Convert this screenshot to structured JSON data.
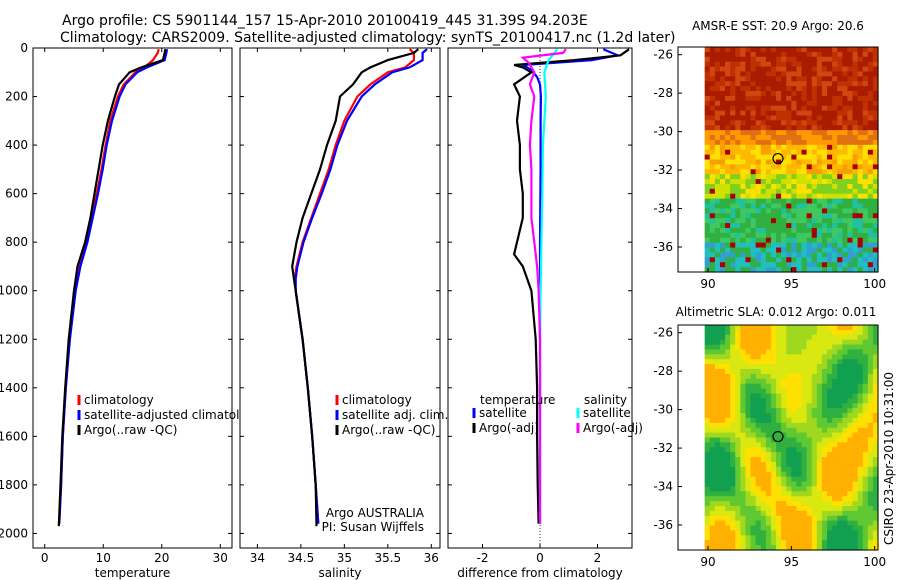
{
  "header": {
    "line1": "Argo profile: CS 5901144_157 15-Apr-2010 20100419_445 31.39S 94.203E",
    "line2": "Climatology: CARS2009. Satellite-adjusted climatology: synTS_20100417.nc (1.2d later)"
  },
  "side_label": "CSIRO 23-Apr-2010 10:31:00",
  "colors": {
    "red": "#ff0000",
    "blue": "#0000ff",
    "black": "#000000",
    "cyan": "#00ffff",
    "magenta": "#ff00ff"
  },
  "chart_data": [
    {
      "id": "temperature",
      "type": "line",
      "xlabel": "temperature",
      "xlim": [
        -2,
        32
      ],
      "xticks": [
        0,
        10,
        20,
        30
      ],
      "ylim": [
        2060,
        0
      ],
      "yticks": [
        0,
        200,
        400,
        600,
        800,
        1000,
        1200,
        1400,
        1600,
        1800,
        2000
      ],
      "legend": {
        "placement": "lower-right",
        "entries": [
          "climatology",
          "satellite-adjusted climatology",
          "Argo(..raw -QC)"
        ]
      },
      "series": [
        {
          "name": "climatology",
          "color": "red",
          "depth": [
            5,
            20,
            50,
            80,
            100,
            150,
            200,
            300,
            400,
            500,
            600,
            700,
            800,
            900,
            1000,
            1200,
            1400,
            1600,
            1800,
            1950
          ],
          "values": [
            19.5,
            19.3,
            18.5,
            17,
            15.5,
            13.5,
            12.5,
            11.2,
            10.4,
            9.7,
            8.9,
            8.0,
            7.1,
            6.0,
            5.2,
            4.2,
            3.6,
            3.1,
            2.8,
            2.5
          ]
        },
        {
          "name": "satellite-adjusted climatology",
          "color": "blue",
          "depth": [
            5,
            20,
            50,
            80,
            100,
            150,
            200,
            300,
            400,
            500,
            600,
            700,
            800,
            900,
            1000,
            1200,
            1400,
            1600,
            1800,
            1960
          ],
          "values": [
            20.9,
            20.8,
            20.5,
            17.5,
            15.8,
            13.8,
            12.8,
            11.5,
            10.6,
            9.9,
            9.1,
            8.2,
            7.3,
            6.1,
            5.3,
            4.3,
            3.6,
            3.1,
            2.8,
            2.5
          ]
        },
        {
          "name": "Argo(..raw -QC)",
          "color": "black",
          "depth": [
            5,
            20,
            50,
            80,
            100,
            150,
            200,
            300,
            400,
            500,
            600,
            700,
            800,
            900,
            1000,
            1200,
            1400,
            1600,
            1800,
            1970
          ],
          "values": [
            20.6,
            20.5,
            20.2,
            16.5,
            14.5,
            12.7,
            12,
            10.8,
            9.9,
            9.2,
            8.5,
            7.8,
            6.9,
            5.6,
            5.0,
            4.1,
            3.5,
            3.0,
            2.7,
            2.4
          ]
        }
      ]
    },
    {
      "id": "salinity",
      "type": "line",
      "xlabel": "salinity",
      "xlim": [
        33.8,
        36.1
      ],
      "xticks": [
        34,
        34.5,
        35,
        35.5,
        36
      ],
      "ylim": [
        2060,
        0
      ],
      "legend": {
        "placement": "lower-right",
        "entries": [
          "climatology",
          "satellite adj. clim.",
          "Argo(..raw -QC)"
        ]
      },
      "annotation": [
        "Argo AUSTRALIA",
        "PI: Susan Wijffels"
      ],
      "series": [
        {
          "name": "climatology",
          "color": "red",
          "depth": [
            5,
            20,
            50,
            80,
            100,
            150,
            200,
            300,
            400,
            500,
            600,
            700,
            800,
            900,
            950,
            1000,
            1100,
            1200,
            1400,
            1600,
            1800,
            1960
          ],
          "values": [
            35.75,
            35.8,
            35.8,
            35.7,
            35.5,
            35.3,
            35.15,
            35.0,
            34.9,
            34.82,
            34.72,
            34.62,
            34.52,
            34.45,
            34.43,
            34.44,
            34.48,
            34.52,
            34.58,
            34.63,
            34.67,
            34.7
          ]
        },
        {
          "name": "satellite adj. clim.",
          "color": "blue",
          "depth": [
            5,
            20,
            50,
            80,
            100,
            150,
            200,
            300,
            400,
            500,
            600,
            700,
            800,
            900,
            950,
            1000,
            1100,
            1200,
            1400,
            1600,
            1800,
            1960
          ],
          "values": [
            35.95,
            35.9,
            35.9,
            35.75,
            35.55,
            35.35,
            35.2,
            35.03,
            34.92,
            34.84,
            34.74,
            34.63,
            34.53,
            34.46,
            34.44,
            34.44,
            34.48,
            34.52,
            34.58,
            34.63,
            34.67,
            34.7
          ]
        },
        {
          "name": "Argo(..raw -QC)",
          "color": "black",
          "depth": [
            5,
            20,
            50,
            80,
            100,
            150,
            200,
            300,
            400,
            500,
            600,
            700,
            800,
            900,
            950,
            1000,
            1100,
            1200,
            1400,
            1600,
            1800,
            1970
          ],
          "values": [
            35.85,
            35.8,
            35.5,
            35.3,
            35.2,
            35.1,
            34.95,
            34.9,
            34.8,
            34.72,
            34.62,
            34.52,
            34.45,
            34.4,
            34.42,
            34.44,
            34.48,
            34.52,
            34.58,
            34.63,
            34.67,
            34.68
          ]
        }
      ]
    },
    {
      "id": "difference",
      "type": "line",
      "xlabel": "difference from climatology",
      "xlim": [
        -3.2,
        3.2
      ],
      "xticks": [
        -2,
        0,
        2
      ],
      "ylim": [
        2060,
        0
      ],
      "legend": {
        "placement": "lower-center",
        "headers": [
          "temperature",
          "salinity"
        ],
        "entries": [
          "satellite",
          "Argo(-adj)",
          "satellite",
          "Argo(-adj)"
        ]
      },
      "series": [
        {
          "name": "temperature satellite",
          "color": "blue",
          "depth": [
            5,
            30,
            50,
            70,
            90,
            120,
            150,
            200,
            300,
            500,
            800,
            1000,
            1200,
            1500,
            1800,
            1960
          ],
          "values": [
            2.2,
            2.7,
            1.8,
            -0.6,
            -0.3,
            -0.1,
            0,
            0.03,
            0.02,
            0.02,
            0,
            0,
            0,
            0,
            0,
            0
          ]
        },
        {
          "name": "temperature Argo(-adj)",
          "color": "black",
          "depth": [
            5,
            30,
            50,
            70,
            80,
            100,
            150,
            200,
            300,
            400,
            500,
            600,
            700,
            800,
            850,
            900,
            1000,
            1200,
            1400,
            1600,
            1800,
            1960
          ],
          "values": [
            3.1,
            2.8,
            1.2,
            -0.9,
            -0.6,
            -0.3,
            -0.9,
            -0.7,
            -0.8,
            -0.7,
            -0.7,
            -0.6,
            -0.6,
            -0.8,
            -0.9,
            -0.6,
            -0.3,
            -0.15,
            -0.1,
            -0.1,
            -0.08,
            -0.05
          ]
        },
        {
          "name": "salinity satellite",
          "color": "cyan",
          "depth": [
            5,
            20,
            50,
            100,
            200,
            400,
            600,
            800,
            1000,
            1200,
            1500,
            1800,
            1960
          ],
          "values": [
            0.6,
            0.5,
            0.3,
            0.15,
            0.2,
            0.1,
            0.08,
            0.05,
            0.02,
            0,
            0,
            0,
            0
          ]
        },
        {
          "name": "salinity Argo(-adj)",
          "color": "magenta",
          "depth": [
            5,
            20,
            40,
            60,
            80,
            100,
            150,
            200,
            300,
            400,
            500,
            600,
            700,
            800,
            900,
            1000,
            1200,
            1600,
            1960
          ],
          "values": [
            0.9,
            0.8,
            -0.6,
            -0.4,
            -0.3,
            -0.2,
            -0.35,
            -0.2,
            -0.3,
            -0.35,
            -0.3,
            -0.3,
            -0.3,
            -0.2,
            -0.1,
            -0.05,
            0,
            0,
            0
          ]
        }
      ]
    },
    {
      "id": "sst_map",
      "type": "heatmap",
      "title": "AMSR-E SST: 20.9  Argo: 20.6",
      "xticks": [
        "90",
        "95",
        "100"
      ],
      "yticks": [
        "-26",
        "-28",
        "-30",
        "-32",
        "-34",
        "-36"
      ],
      "xlim": [
        88.2,
        100.2
      ],
      "ylim": [
        -37.3,
        -25.6
      ],
      "marker": {
        "lon": 94.2,
        "lat": -31.4
      }
    },
    {
      "id": "sla_map",
      "type": "heatmap",
      "title": "Altimetric SLA: 0.012  Argo: 0.011",
      "xticks": [
        "90",
        "95",
        "100"
      ],
      "yticks": [
        "-26",
        "-28",
        "-30",
        "-32",
        "-34",
        "-36"
      ],
      "xlim": [
        88.2,
        100.2
      ],
      "ylim": [
        -37.3,
        -25.6
      ],
      "marker": {
        "lon": 94.2,
        "lat": -31.4
      }
    }
  ]
}
